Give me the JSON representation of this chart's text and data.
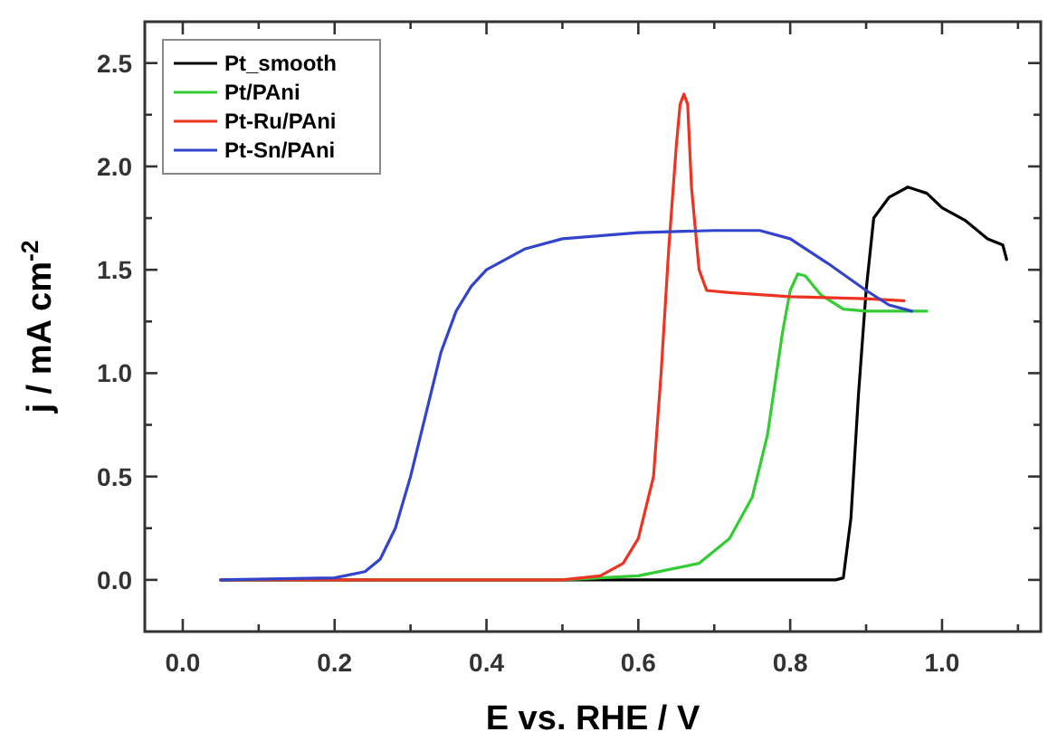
{
  "chart_data": {
    "type": "line",
    "xlabel": "E vs. RHE / V",
    "ylabel": "j / mA cm$^{-2}$",
    "xlim": [
      -0.05,
      1.13
    ],
    "ylim": [
      -0.25,
      2.7
    ],
    "xticks": [
      {
        "value": 0,
        "label": "0.0"
      },
      {
        "value": 0.1,
        "label": null
      },
      {
        "value": 0.2,
        "label": "0.2"
      },
      {
        "value": 0.3,
        "label": null
      },
      {
        "value": 0.4,
        "label": "0.4"
      },
      {
        "value": 0.5,
        "label": null
      },
      {
        "value": 0.6,
        "label": "0.6"
      },
      {
        "value": 0.7,
        "label": null
      },
      {
        "value": 0.8,
        "label": "0.8"
      },
      {
        "value": 0.9,
        "label": null
      },
      {
        "value": 1.0,
        "label": "1.0"
      },
      {
        "value": 1.1,
        "label": null
      }
    ],
    "yticks": [
      {
        "value": 0,
        "label": "0.0"
      },
      {
        "value": 0.25,
        "label": null
      },
      {
        "value": 0.5,
        "label": "0.5"
      },
      {
        "value": 0.75,
        "label": null
      },
      {
        "value": 1.0,
        "label": "1.0"
      },
      {
        "value": 1.25,
        "label": null
      },
      {
        "value": 1.5,
        "label": "1.5"
      },
      {
        "value": 1.75,
        "label": null
      },
      {
        "value": 2.0,
        "label": "2.0"
      },
      {
        "value": 2.25,
        "label": null
      },
      {
        "value": 2.5,
        "label": "2.5"
      }
    ],
    "legend": "top left",
    "grid": false,
    "series": [
      {
        "name": "Pt_smooth",
        "color": "#000000",
        "x": [
          0.05,
          0.5,
          0.86,
          0.87,
          0.88,
          0.89,
          0.9,
          0.91,
          0.93,
          0.955,
          0.98,
          1.0,
          1.03,
          1.06,
          1.08,
          1.085
        ],
        "values": [
          0,
          0,
          0,
          0.01,
          0.3,
          0.9,
          1.4,
          1.75,
          1.85,
          1.9,
          1.87,
          1.8,
          1.74,
          1.65,
          1.62,
          1.55
        ]
      },
      {
        "name": "Pt/PAni",
        "color": "#33cc33",
        "x": [
          0.05,
          0.5,
          0.6,
          0.68,
          0.72,
          0.75,
          0.77,
          0.79,
          0.8,
          0.81,
          0.82,
          0.84,
          0.87,
          0.9,
          0.98
        ],
        "values": [
          0,
          0,
          0.02,
          0.08,
          0.2,
          0.4,
          0.7,
          1.2,
          1.4,
          1.48,
          1.47,
          1.38,
          1.31,
          1.3,
          1.3
        ]
      },
      {
        "name": "Pt-Ru/PAni",
        "color": "#ee3322",
        "x": [
          0.05,
          0.5,
          0.55,
          0.58,
          0.6,
          0.62,
          0.63,
          0.64,
          0.65,
          0.655,
          0.66,
          0.665,
          0.67,
          0.68,
          0.69,
          0.72,
          0.8,
          0.9,
          0.95
        ],
        "values": [
          0,
          0,
          0.02,
          0.08,
          0.2,
          0.5,
          1.0,
          1.6,
          2.1,
          2.3,
          2.35,
          2.3,
          1.9,
          1.5,
          1.4,
          1.39,
          1.37,
          1.36,
          1.35
        ]
      },
      {
        "name": "Pt-Sn/PAni",
        "color": "#3344cc",
        "x": [
          0.05,
          0.2,
          0.24,
          0.26,
          0.28,
          0.3,
          0.32,
          0.34,
          0.36,
          0.38,
          0.4,
          0.45,
          0.5,
          0.6,
          0.7,
          0.76,
          0.8,
          0.85,
          0.9,
          0.93,
          0.96
        ],
        "values": [
          0,
          0.01,
          0.04,
          0.1,
          0.25,
          0.5,
          0.8,
          1.1,
          1.3,
          1.42,
          1.5,
          1.6,
          1.65,
          1.68,
          1.69,
          1.69,
          1.65,
          1.53,
          1.4,
          1.33,
          1.3
        ]
      }
    ]
  }
}
